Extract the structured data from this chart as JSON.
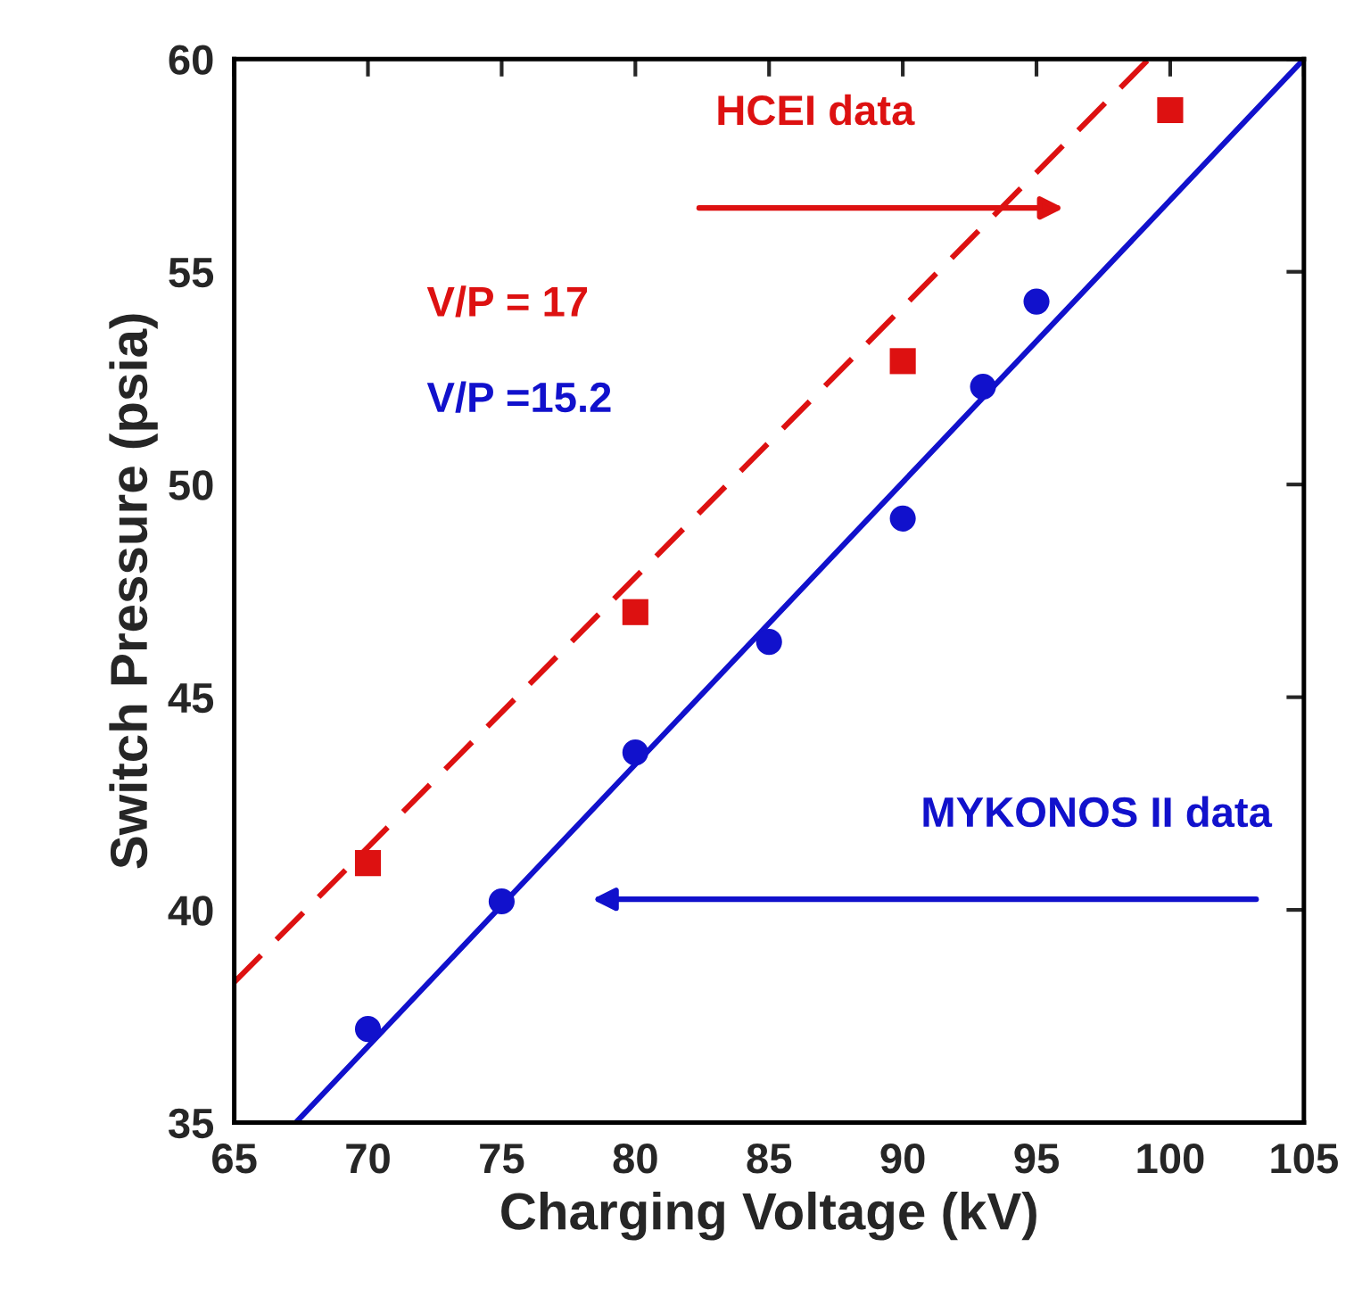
{
  "chart_data": {
    "type": "scatter",
    "xlabel": "Charging Voltage (kV)",
    "ylabel": "Switch Pressure (psia)",
    "xlim": [
      65,
      105
    ],
    "ylim": [
      35,
      60
    ],
    "xticks": [
      65,
      70,
      75,
      80,
      85,
      90,
      95,
      100,
      105
    ],
    "yticks": [
      35,
      40,
      45,
      50,
      55,
      60
    ],
    "grid": false,
    "legend": false,
    "series": [
      {
        "type": "line",
        "color": "#dd1111",
        "line_style": "dashed",
        "marker": "none",
        "x": [
          65,
          99.2
        ],
        "values": [
          38.3,
          60
        ]
      },
      {
        "type": "line",
        "color": "#1111cc",
        "line_style": "solid",
        "marker": "none",
        "x": [
          67.3,
          105
        ],
        "values": [
          35,
          60
        ]
      },
      {
        "color": "#dd1111",
        "marker": "square",
        "x": [
          70,
          80,
          90,
          100
        ],
        "values": [
          41.1,
          47.0,
          52.9,
          58.8
        ]
      },
      {
        "color": "#1111cc",
        "marker": "circle",
        "x": [
          70,
          75,
          80,
          85,
          90,
          93,
          95
        ],
        "values": [
          37.2,
          40.2,
          43.7,
          46.3,
          49.2,
          52.3,
          54.3
        ]
      }
    ],
    "annotations": [
      "HCEI data",
      "MYKONOS II data",
      "V/P = 17",
      "V/P =15.2"
    ]
  }
}
